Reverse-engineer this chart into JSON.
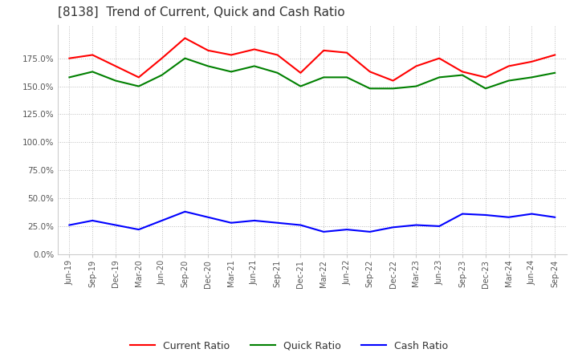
{
  "title": "[8138]  Trend of Current, Quick and Cash Ratio",
  "title_fontsize": 11,
  "title_color": "#333333",
  "background_color": "#ffffff",
  "plot_background_color": "#ffffff",
  "grid_color": "#aaaaaa",
  "x_labels": [
    "Jun-19",
    "Sep-19",
    "Dec-19",
    "Mar-20",
    "Jun-20",
    "Sep-20",
    "Dec-20",
    "Mar-21",
    "Jun-21",
    "Sep-21",
    "Dec-21",
    "Mar-22",
    "Jun-22",
    "Sep-22",
    "Dec-22",
    "Mar-23",
    "Jun-23",
    "Sep-23",
    "Dec-23",
    "Mar-24",
    "Jun-24",
    "Sep-24"
  ],
  "current_ratio": [
    175.0,
    178.0,
    168.0,
    158.0,
    175.0,
    193.0,
    182.0,
    178.0,
    183.0,
    178.0,
    162.0,
    182.0,
    180.0,
    163.0,
    155.0,
    168.0,
    175.0,
    163.0,
    158.0,
    168.0,
    172.0,
    178.0
  ],
  "quick_ratio": [
    158.0,
    163.0,
    155.0,
    150.0,
    160.0,
    175.0,
    168.0,
    163.0,
    168.0,
    162.0,
    150.0,
    158.0,
    158.0,
    148.0,
    148.0,
    150.0,
    158.0,
    160.0,
    148.0,
    155.0,
    158.0,
    162.0
  ],
  "cash_ratio": [
    26.0,
    30.0,
    26.0,
    22.0,
    30.0,
    38.0,
    33.0,
    28.0,
    30.0,
    28.0,
    26.0,
    20.0,
    22.0,
    20.0,
    24.0,
    26.0,
    25.0,
    36.0,
    35.0,
    33.0,
    36.0,
    33.0
  ],
  "current_color": "#ff0000",
  "quick_color": "#008000",
  "cash_color": "#0000ff",
  "line_width": 1.5,
  "ylim": [
    0,
    205
  ],
  "yticks": [
    0.0,
    25.0,
    50.0,
    75.0,
    100.0,
    125.0,
    150.0,
    175.0
  ],
  "legend_labels": [
    "Current Ratio",
    "Quick Ratio",
    "Cash Ratio"
  ]
}
